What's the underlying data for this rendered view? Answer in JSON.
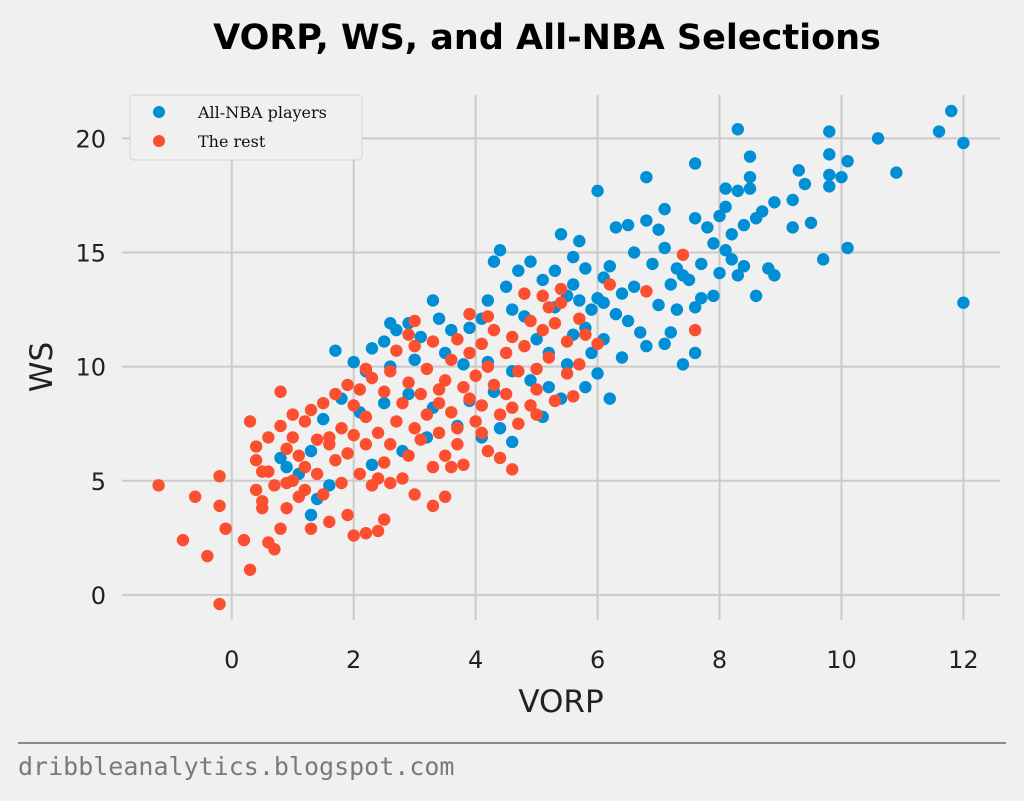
{
  "chart_data": {
    "type": "scatter",
    "title": "VORP, WS, and All-NBA Selections",
    "xlabel": "VORP",
    "ylabel": "WS",
    "xlim": [
      -1.8,
      12.6
    ],
    "ylim": [
      -1.1,
      21.9
    ],
    "xticks": [
      0,
      2,
      4,
      6,
      8,
      10,
      12
    ],
    "yticks": [
      0,
      5,
      10,
      15,
      20
    ],
    "grid": true,
    "legend_position": "top-left",
    "series": [
      {
        "name": "All-NBA players",
        "color": "#008fd5",
        "points": [
          [
            11.8,
            21.2
          ],
          [
            11.6,
            20.3
          ],
          [
            12,
            19.8
          ],
          [
            10.6,
            20
          ],
          [
            10.9,
            18.5
          ],
          [
            9.8,
            20.3
          ],
          [
            9.8,
            19.3
          ],
          [
            10.1,
            19
          ],
          [
            9.8,
            18.4
          ],
          [
            9.8,
            17.9
          ],
          [
            10,
            18.3
          ],
          [
            12,
            12.8
          ],
          [
            10.1,
            15.2
          ],
          [
            9.7,
            14.7
          ],
          [
            8.3,
            20.4
          ],
          [
            7.6,
            18.9
          ],
          [
            6.8,
            18.3
          ],
          [
            8.5,
            19.2
          ],
          [
            9.3,
            18.6
          ],
          [
            9.4,
            18
          ],
          [
            9.2,
            17.3
          ],
          [
            8.9,
            17.2
          ],
          [
            8.1,
            17.8
          ],
          [
            8.3,
            17.7
          ],
          [
            8.5,
            18.3
          ],
          [
            8.5,
            17.8
          ],
          [
            8.1,
            17
          ],
          [
            7.1,
            16.9
          ],
          [
            6,
            17.7
          ],
          [
            9.5,
            16.3
          ],
          [
            9.2,
            16.1
          ],
          [
            8.7,
            16.8
          ],
          [
            8.6,
            16.5
          ],
          [
            8.4,
            16.2
          ],
          [
            8.2,
            15.8
          ],
          [
            8,
            16.6
          ],
          [
            7.8,
            16.1
          ],
          [
            7.6,
            16.5
          ],
          [
            7.9,
            15.4
          ],
          [
            8.1,
            15.1
          ],
          [
            8.4,
            14.4
          ],
          [
            8.8,
            14.3
          ],
          [
            8.9,
            14
          ],
          [
            8.3,
            14
          ],
          [
            7.7,
            14.5
          ],
          [
            7.5,
            13.8
          ],
          [
            7.3,
            14.3
          ],
          [
            7.1,
            15.2
          ],
          [
            7,
            16
          ],
          [
            6.8,
            16.4
          ],
          [
            6.5,
            16.2
          ],
          [
            6.3,
            16.1
          ],
          [
            6.6,
            15
          ],
          [
            6.9,
            14.5
          ],
          [
            7.2,
            13.6
          ],
          [
            7.7,
            13.0
          ],
          [
            7.9,
            13.1
          ],
          [
            7.6,
            12.6
          ],
          [
            7.3,
            12.5
          ],
          [
            7,
            12.7
          ],
          [
            7.2,
            11.5
          ],
          [
            7.6,
            10.6
          ],
          [
            7.4,
            10.1
          ],
          [
            7.1,
            11
          ],
          [
            6.7,
            11.5
          ],
          [
            6.5,
            12
          ],
          [
            6.4,
            13.2
          ],
          [
            6.1,
            13.9
          ],
          [
            5.8,
            14.3
          ],
          [
            5.7,
            15.5
          ],
          [
            5.4,
            15.8
          ],
          [
            5.6,
            14.8
          ],
          [
            5.3,
            14.2
          ],
          [
            5.1,
            13.8
          ],
          [
            4.9,
            14.6
          ],
          [
            4.7,
            14.2
          ],
          [
            4.4,
            15.1
          ],
          [
            4.3,
            14.6
          ],
          [
            5.9,
            12.5
          ],
          [
            5.7,
            12.9
          ],
          [
            5.5,
            13.1
          ],
          [
            5.3,
            12.6
          ],
          [
            6.1,
            12.8
          ],
          [
            6.3,
            12.3
          ],
          [
            6.6,
            13.5
          ],
          [
            5.8,
            11.7
          ],
          [
            6.1,
            11.2
          ],
          [
            6.4,
            10.4
          ],
          [
            6,
            9.7
          ],
          [
            6.2,
            8.6
          ],
          [
            5.8,
            9.1
          ],
          [
            5.5,
            10.1
          ],
          [
            5.2,
            10.6
          ],
          [
            5,
            11.2
          ],
          [
            4.8,
            12.2
          ],
          [
            4.6,
            12.5
          ],
          [
            4.5,
            13.5
          ],
          [
            4.2,
            12.9
          ],
          [
            4.1,
            12.1
          ],
          [
            3.9,
            11.7
          ],
          [
            3.6,
            11.6
          ],
          [
            3.3,
            12.9
          ],
          [
            3.4,
            12.1
          ],
          [
            3.1,
            11.3
          ],
          [
            2.9,
            11.9
          ],
          [
            2.7,
            11.6
          ],
          [
            2.6,
            11.9
          ],
          [
            2.5,
            11.1
          ],
          [
            2.3,
            10.8
          ],
          [
            1.7,
            10.7
          ],
          [
            2,
            10.2
          ],
          [
            2.2,
            9.8
          ],
          [
            2.6,
            10
          ],
          [
            3.0,
            10.3
          ],
          [
            3.5,
            10.6
          ],
          [
            3.8,
            10.1
          ],
          [
            4.2,
            10.2
          ],
          [
            4.6,
            9.8
          ],
          [
            4.9,
            9.4
          ],
          [
            5.2,
            9.1
          ],
          [
            5.4,
            8.6
          ],
          [
            5.1,
            7.8
          ],
          [
            4.4,
            7.3
          ],
          [
            4.1,
            6.9
          ],
          [
            4.6,
            6.7
          ],
          [
            3.7,
            7.4
          ],
          [
            3.3,
            8.2
          ],
          [
            2.9,
            8.8
          ],
          [
            2.5,
            8.4
          ],
          [
            2.1,
            8.0
          ],
          [
            1.8,
            8.6
          ],
          [
            1.5,
            7.7
          ],
          [
            1.3,
            6.3
          ],
          [
            1.1,
            5.3
          ],
          [
            0.9,
            5.6
          ],
          [
            0.8,
            6.0
          ],
          [
            1.4,
            4.2
          ],
          [
            1.3,
            3.5
          ],
          [
            1.6,
            4.8
          ],
          [
            2.3,
            5.7
          ],
          [
            2.8,
            6.3
          ],
          [
            3.2,
            6.9
          ],
          [
            3.9,
            8.5
          ],
          [
            4.3,
            8.9
          ],
          [
            5.6,
            11.4
          ],
          [
            5.9,
            10.6
          ],
          [
            6.8,
            10.9
          ],
          [
            5.6,
            13.6
          ],
          [
            6.0,
            13.0
          ],
          [
            6.2,
            14.4
          ],
          [
            7.4,
            14.0
          ],
          [
            8.0,
            14.1
          ],
          [
            8.6,
            13.1
          ],
          [
            8.2,
            14.7
          ]
        ]
      },
      {
        "name": "The rest",
        "color": "#fc4f30",
        "points": [
          [
            -1.2,
            4.8
          ],
          [
            -0.8,
            2.4
          ],
          [
            -0.6,
            4.3
          ],
          [
            -0.4,
            1.7
          ],
          [
            -0.2,
            -0.4
          ],
          [
            -0.2,
            5.2
          ],
          [
            -0.2,
            3.9
          ],
          [
            -0.1,
            2.9
          ],
          [
            0.2,
            2.4
          ],
          [
            0.3,
            1.1
          ],
          [
            0.3,
            7.6
          ],
          [
            0.6,
            2.3
          ],
          [
            0.7,
            2.0
          ],
          [
            0.8,
            8.9
          ],
          [
            7.4,
            14.9
          ],
          [
            7.6,
            11.6
          ],
          [
            6.8,
            13.3
          ],
          [
            6.2,
            13.6
          ],
          [
            0.4,
            6.5
          ],
          [
            0.4,
            5.9
          ],
          [
            0.4,
            4.6
          ],
          [
            0.5,
            5.4
          ],
          [
            0.5,
            3.8
          ],
          [
            0.6,
            6.9
          ],
          [
            0.6,
            5.4
          ],
          [
            0.7,
            4.8
          ],
          [
            0.8,
            2.9
          ],
          [
            0.8,
            7.4
          ],
          [
            0.9,
            6.4
          ],
          [
            0.9,
            3.8
          ],
          [
            1.0,
            5.0
          ],
          [
            1.0,
            7.9
          ],
          [
            1.1,
            4.3
          ],
          [
            1.1,
            6.1
          ],
          [
            1.2,
            5.6
          ],
          [
            1.2,
            7.6
          ],
          [
            1.3,
            2.9
          ],
          [
            1.3,
            8.1
          ],
          [
            1.4,
            5.3
          ],
          [
            1.4,
            6.8
          ],
          [
            1.5,
            4.4
          ],
          [
            1.5,
            8.4
          ],
          [
            1.6,
            3.2
          ],
          [
            1.6,
            6.6
          ],
          [
            1.7,
            8.8
          ],
          [
            1.7,
            5.9
          ],
          [
            1.8,
            7.3
          ],
          [
            1.8,
            4.9
          ],
          [
            1.9,
            3.5
          ],
          [
            1.9,
            6.2
          ],
          [
            2.0,
            2.6
          ],
          [
            2.0,
            8.3
          ],
          [
            2.0,
            7.0
          ],
          [
            2.1,
            5.3
          ],
          [
            2.1,
            9.0
          ],
          [
            2.2,
            6.6
          ],
          [
            2.2,
            7.8
          ],
          [
            2.3,
            4.8
          ],
          [
            2.3,
            9.5
          ],
          [
            2.4,
            2.8
          ],
          [
            2.4,
            7.1
          ],
          [
            2.5,
            3.3
          ],
          [
            2.5,
            5.8
          ],
          [
            2.5,
            8.9
          ],
          [
            2.6,
            6.6
          ],
          [
            2.6,
            9.8
          ],
          [
            2.7,
            7.6
          ],
          [
            2.7,
            10.7
          ],
          [
            2.8,
            5.1
          ],
          [
            2.8,
            8.4
          ],
          [
            2.9,
            6.1
          ],
          [
            2.9,
            9.3
          ],
          [
            3.0,
            7.3
          ],
          [
            3.0,
            4.4
          ],
          [
            3.0,
            10.9
          ],
          [
            3.1,
            8.8
          ],
          [
            3.1,
            6.8
          ],
          [
            3.2,
            7.9
          ],
          [
            3.2,
            9.9
          ],
          [
            3.3,
            5.6
          ],
          [
            3.3,
            11.1
          ],
          [
            3.4,
            8.4
          ],
          [
            3.4,
            7.1
          ],
          [
            3.5,
            9.4
          ],
          [
            3.5,
            4.3
          ],
          [
            3.5,
            6.1
          ],
          [
            3.6,
            10.3
          ],
          [
            3.6,
            8.0
          ],
          [
            3.7,
            7.3
          ],
          [
            3.7,
            11.2
          ],
          [
            3.8,
            9.1
          ],
          [
            3.8,
            5.7
          ],
          [
            3.9,
            8.6
          ],
          [
            3.9,
            10.6
          ],
          [
            4.0,
            7.6
          ],
          [
            4.0,
            9.6
          ],
          [
            4.1,
            11.0
          ],
          [
            4.1,
            8.3
          ],
          [
            4.2,
            6.3
          ],
          [
            4.2,
            10.0
          ],
          [
            4.3,
            9.2
          ],
          [
            4.3,
            11.6
          ],
          [
            4.4,
            7.9
          ],
          [
            4.5,
            10.6
          ],
          [
            4.5,
            8.8
          ],
          [
            4.6,
            5.5
          ],
          [
            4.6,
            11.3
          ],
          [
            4.7,
            9.8
          ],
          [
            4.7,
            7.5
          ],
          [
            4.8,
            10.9
          ],
          [
            4.9,
            8.3
          ],
          [
            4.9,
            12.0
          ],
          [
            5.0,
            9.9
          ],
          [
            5.0,
            7.9
          ],
          [
            5.1,
            11.6
          ],
          [
            5.2,
            12.6
          ],
          [
            5.2,
            10.4
          ],
          [
            5.3,
            8.5
          ],
          [
            5.3,
            11.9
          ],
          [
            5.4,
            12.8
          ],
          [
            5.5,
            9.7
          ],
          [
            5.5,
            11.1
          ],
          [
            5.6,
            8.7
          ],
          [
            5.7,
            12.1
          ],
          [
            5.8,
            11.4
          ],
          [
            5.1,
            13.1
          ],
          [
            5.4,
            13.4
          ],
          [
            4.8,
            13.2
          ],
          [
            3.9,
            12.3
          ],
          [
            2.9,
            11.4
          ],
          [
            1.6,
            6.9
          ],
          [
            1.2,
            4.6
          ],
          [
            0.9,
            4.9
          ],
          [
            2.4,
            5.1
          ],
          [
            3.6,
            5.6
          ],
          [
            4.4,
            6.0
          ],
          [
            2.2,
            9.9
          ],
          [
            1.9,
            9.2
          ],
          [
            3.3,
            3.9
          ],
          [
            2.6,
            4.9
          ],
          [
            3.7,
            6.6
          ],
          [
            4.1,
            7.1
          ],
          [
            1.0,
            6.9
          ],
          [
            0.5,
            4.1
          ],
          [
            5.0,
            9.0
          ],
          [
            4.2,
            12.2
          ],
          [
            3.0,
            12.0
          ],
          [
            2.2,
            2.7
          ],
          [
            3.4,
            9.0
          ],
          [
            4.6,
            8.2
          ],
          [
            6.0,
            11.0
          ],
          [
            5.7,
            10.1
          ]
        ]
      }
    ],
    "background": "#f0f0f0",
    "grid_color": "#cbcbcb"
  },
  "footer": {
    "credit": "dribbleanalytics.blogspot.com"
  }
}
